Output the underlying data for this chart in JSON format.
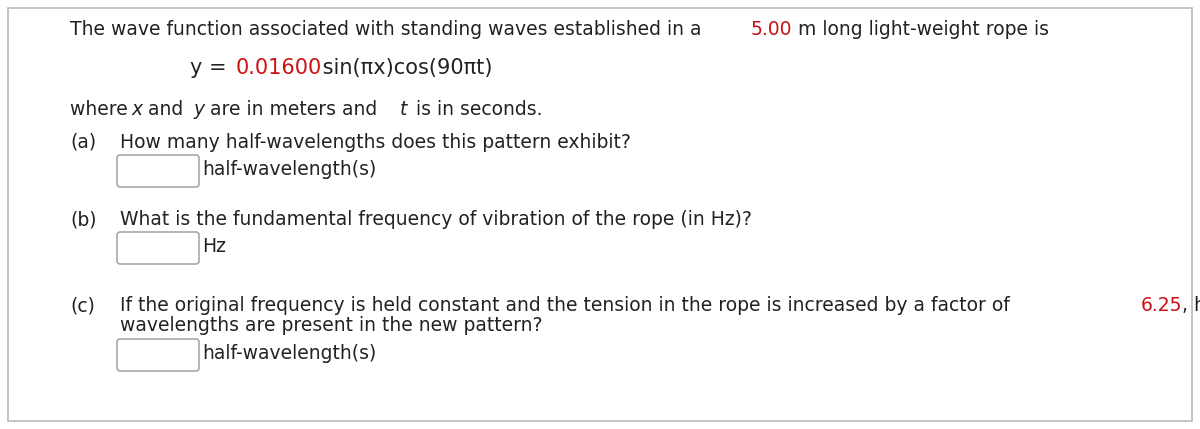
{
  "bg_color": "#ffffff",
  "border_color": "#bbbbbb",
  "text_color": "#222222",
  "red_color": "#cc1111",
  "box_edge": "#999999",
  "fs": 13.5,
  "eq_fs": 15,
  "intro_1": "The wave function associated with standing waves established in a ",
  "intro_red": "5.00",
  "intro_2": " m long light-weight rope is",
  "eq_1": "y = ",
  "eq_red": "0.01600",
  "eq_2": " sin(πx)cos(90πt)",
  "where_parts": [
    "where ",
    "x",
    " and ",
    "y",
    " are in meters and ",
    "t",
    " is in seconds."
  ],
  "where_italic": [
    false,
    true,
    false,
    true,
    false,
    true,
    false
  ],
  "a_label": "(a)",
  "a_q": "How many half-wavelengths does this pattern exhibit?",
  "a_unit": "half-wavelength(s)",
  "b_label": "(b)",
  "b_q": "What is the fundamental frequency of vibration of the rope (in Hz)?",
  "b_unit": "Hz",
  "c_label": "(c)",
  "c_line1_1": "If the original frequency is held constant and the tension in the rope is increased by a factor of ",
  "c_line1_red": "6.25",
  "c_line1_2": ", how many half-",
  "c_line2": "wavelengths are present in the new pattern?",
  "c_unit": "half-wavelength(s)"
}
